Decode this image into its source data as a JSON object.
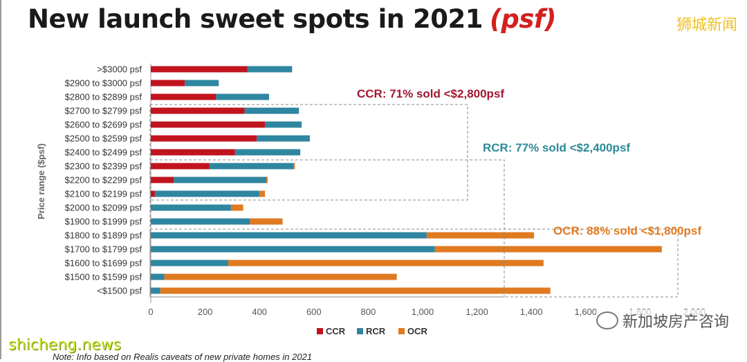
{
  "header": {
    "title": "New launch sweet spots in 2021",
    "title_suffix": "(psf)"
  },
  "watermarks": {
    "top_right": "狮城新闻",
    "bottom_left": "shicheng.news",
    "bottom_right": "新加坡房产咨询"
  },
  "note": "Note: Info based on Realis caveats of new private homes in 2021",
  "colors": {
    "CCR": "#c0141e",
    "RCR": "#2f86a0",
    "OCR": "#e07a20",
    "annot_ccr": "#a01830",
    "annot_rcr": "#2a8a98",
    "annot_ocr": "#e07a20"
  },
  "chart_data": {
    "type": "bar",
    "orientation": "horizontal",
    "stacked": true,
    "ylabel": "Price range ($psf)",
    "xlim": [
      0,
      2000
    ],
    "xticks": [
      "0",
      "200",
      "400",
      "600",
      "800",
      "1,000",
      "1,200",
      "1,400",
      "1,600",
      "1,800",
      "2,000"
    ],
    "legend_position": "bottom",
    "categories": [
      ">$3000 psf",
      "$2900 to $3000 psf",
      "$2800 to $2899 psf",
      "$2700 to $2799 psf",
      "$2600 to $2699 psf",
      "$2500 to $2599 psf",
      "$2400 to $2499 psf",
      "$2300 to $2399 psf",
      "$2200 to $2299 psf",
      "$2100 to $2199 psf",
      "$2000 to $2099 psf",
      "$1900 to $1999 psf",
      "$1800 to $1899 psf",
      "$1700 to $1799 psf",
      "$1600 to $1699 psf",
      "$1500 to $1599 psf",
      "<$1500 psf"
    ],
    "series": [
      {
        "name": "CCR",
        "values": [
          355,
          125,
          240,
          345,
          420,
          390,
          310,
          215,
          85,
          15,
          0,
          0,
          0,
          0,
          0,
          0,
          0
        ]
      },
      {
        "name": "RCR",
        "values": [
          165,
          125,
          195,
          200,
          135,
          195,
          240,
          310,
          340,
          385,
          295,
          365,
          1015,
          1045,
          285,
          50,
          35
        ]
      },
      {
        "name": "OCR",
        "values": [
          0,
          0,
          0,
          0,
          0,
          0,
          0,
          5,
          5,
          20,
          45,
          120,
          395,
          835,
          1160,
          855,
          1435
        ]
      }
    ],
    "annotations": [
      {
        "label": "CCR: 71% sold <$2,800psf",
        "series": "CCR"
      },
      {
        "label": "RCR: 77% sold <$2,400psf",
        "series": "RCR"
      },
      {
        "label": "OCR: 88% sold <$1,800psf",
        "series": "OCR"
      }
    ]
  }
}
